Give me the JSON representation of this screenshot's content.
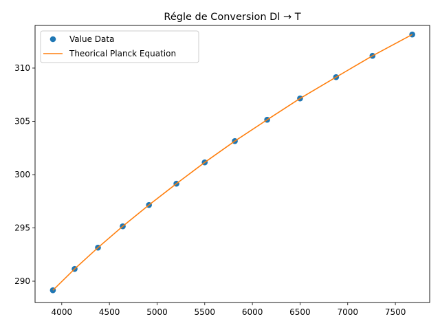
{
  "chart_data": {
    "type": "scatter",
    "title": "Régle de Conversion Dl → T",
    "xlabel": "",
    "ylabel": "",
    "xlim": [
      3720,
      7860
    ],
    "ylim": [
      288,
      314
    ],
    "xticks": [
      4000,
      4500,
      5000,
      5500,
      6000,
      6500,
      7000,
      7500
    ],
    "yticks": [
      290,
      295,
      300,
      305,
      310
    ],
    "grid": false,
    "legend_position": "top-left",
    "series": [
      {
        "name": "Value Data",
        "kind": "markers",
        "color": "#1f77b4",
        "x": [
          3907,
          4135,
          4380,
          4640,
          4915,
          5203,
          5500,
          5816,
          6155,
          6500,
          6878,
          7260,
          7677
        ],
        "y": [
          289.15,
          291.15,
          293.15,
          295.15,
          297.15,
          299.15,
          301.15,
          303.15,
          305.15,
          307.15,
          309.15,
          311.15,
          313.15
        ]
      },
      {
        "name": "Theorical Planck Equation",
        "kind": "line",
        "color": "#ff7f0e",
        "x": [
          3907,
          4135,
          4380,
          4640,
          4915,
          5203,
          5500,
          5816,
          6155,
          6500,
          6878,
          7260,
          7677
        ],
        "y": [
          289.15,
          291.15,
          293.15,
          295.15,
          297.15,
          299.15,
          301.15,
          303.15,
          305.15,
          307.15,
          309.15,
          311.15,
          313.15
        ]
      }
    ]
  }
}
